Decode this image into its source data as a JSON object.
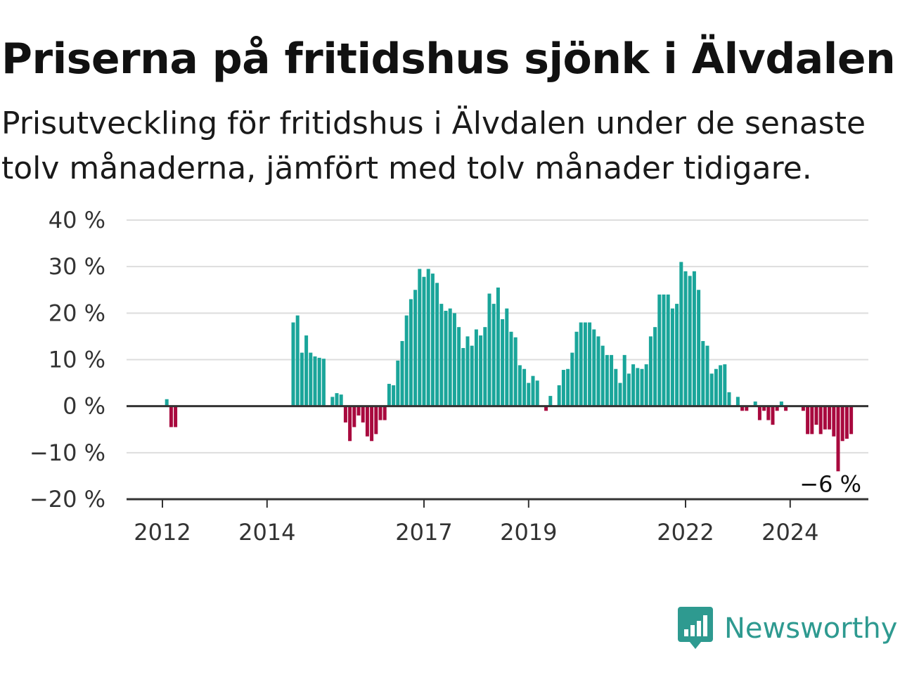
{
  "header": {
    "title": "Priserna på fritidshus sjönk i Älvdalen",
    "subtitle": "Prisutveckling för fritidshus i Älvdalen under de senaste tolv månaderna, jämfört med tolv månader tidigare."
  },
  "colors": {
    "positive": "#1aa59a",
    "negative": "#a8093e",
    "grid": "#dddddd",
    "axis": "#333333",
    "brand": "#2e9a90"
  },
  "brand": {
    "name": "Newsworthy",
    "icon": "newsworthy-logo-icon"
  },
  "chart_data": {
    "type": "bar",
    "title": "",
    "xlabel": "",
    "ylabel": "",
    "ylim": [
      -20,
      40
    ],
    "y_ticks": [
      40,
      30,
      20,
      10,
      0,
      -10,
      -20
    ],
    "y_tick_labels": [
      "40 %",
      "30 %",
      "20 %",
      "10 %",
      "0 %",
      "−10 %",
      "−20 %"
    ],
    "x_ticks": [
      2012,
      2014,
      2017,
      2019,
      2022,
      2024
    ],
    "x_tick_labels": [
      "2012",
      "2014",
      "2017",
      "2019",
      "2022",
      "2024"
    ],
    "x_start": "2011-06",
    "x_unit": "month",
    "grid": true,
    "end_label": "−6 %",
    "values": [
      null,
      null,
      null,
      null,
      null,
      null,
      null,
      null,
      1.5,
      -4.5,
      -4.5,
      null,
      null,
      null,
      null,
      null,
      null,
      null,
      null,
      null,
      null,
      null,
      null,
      null,
      null,
      null,
      null,
      null,
      null,
      null,
      null,
      null,
      null,
      null,
      null,
      null,
      null,
      18,
      19.5,
      11.5,
      15.2,
      11.5,
      10.7,
      10.4,
      10.2,
      null,
      2,
      2.8,
      2.5,
      -3.5,
      -7.5,
      -4.5,
      -2,
      -3.5,
      -6.5,
      -7.5,
      -6,
      -3,
      -3,
      4.8,
      4.5,
      9.8,
      14,
      19.5,
      23,
      25,
      29.5,
      27.8,
      29.5,
      28.5,
      26.5,
      22,
      20.5,
      21,
      20,
      17,
      12.5,
      15,
      13,
      16.5,
      15.2,
      17,
      24.2,
      22,
      25.5,
      18.7,
      21,
      16,
      14.8,
      8.8,
      8,
      5,
      6.5,
      5.5,
      null,
      -1,
      2.2,
      null,
      4.5,
      7.8,
      8,
      11.5,
      16,
      18,
      18,
      18,
      16.5,
      15,
      13,
      11,
      11,
      8,
      5,
      11,
      7,
      9,
      8.2,
      8,
      9,
      15,
      17,
      24,
      24,
      24,
      21,
      22,
      31,
      29,
      28,
      29,
      25,
      14,
      13,
      7,
      8,
      8.8,
      9,
      3,
      null,
      2,
      -1,
      -1,
      null,
      1,
      -3,
      -1,
      -3,
      -4,
      -1,
      1,
      -1,
      null,
      null,
      null,
      -1,
      -6,
      -6,
      -4,
      -6,
      -5,
      -5,
      -6.5,
      -14,
      -7.5,
      -7,
      -6
    ]
  }
}
